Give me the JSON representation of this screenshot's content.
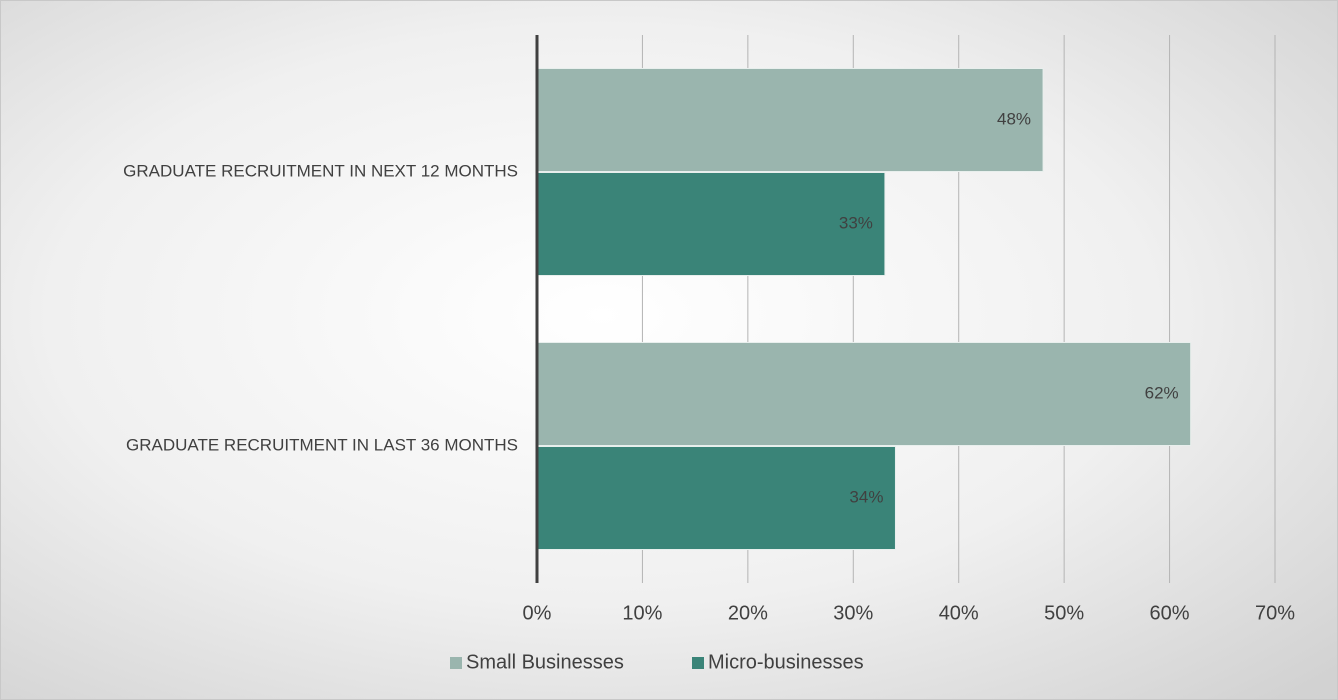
{
  "chart_data": {
    "type": "hbar",
    "categories": [
      "GRADUATE RECRUITMENT IN NEXT 12 MONTHS",
      "GRADUATE RECRUITMENT IN LAST 36 MONTHS"
    ],
    "series": [
      {
        "name": "Small Businesses",
        "color": "#9ab5ae",
        "values": [
          48,
          62
        ],
        "value_labels": [
          "48%",
          "62%"
        ]
      },
      {
        "name": "Micro-businesses",
        "color": "#3a8478",
        "values": [
          33,
          34
        ],
        "value_labels": [
          "33%",
          "34%"
        ]
      }
    ],
    "xlim": [
      0,
      70
    ],
    "xticks": [
      {
        "value": 0,
        "label": "0%"
      },
      {
        "value": 10,
        "label": "10%"
      },
      {
        "value": 20,
        "label": "20%"
      },
      {
        "value": 30,
        "label": "30%"
      },
      {
        "value": 40,
        "label": "40%"
      },
      {
        "value": 50,
        "label": "50%"
      },
      {
        "value": 60,
        "label": "60%"
      },
      {
        "value": 70,
        "label": "70%"
      }
    ],
    "grid": true,
    "legend": "bottom"
  }
}
